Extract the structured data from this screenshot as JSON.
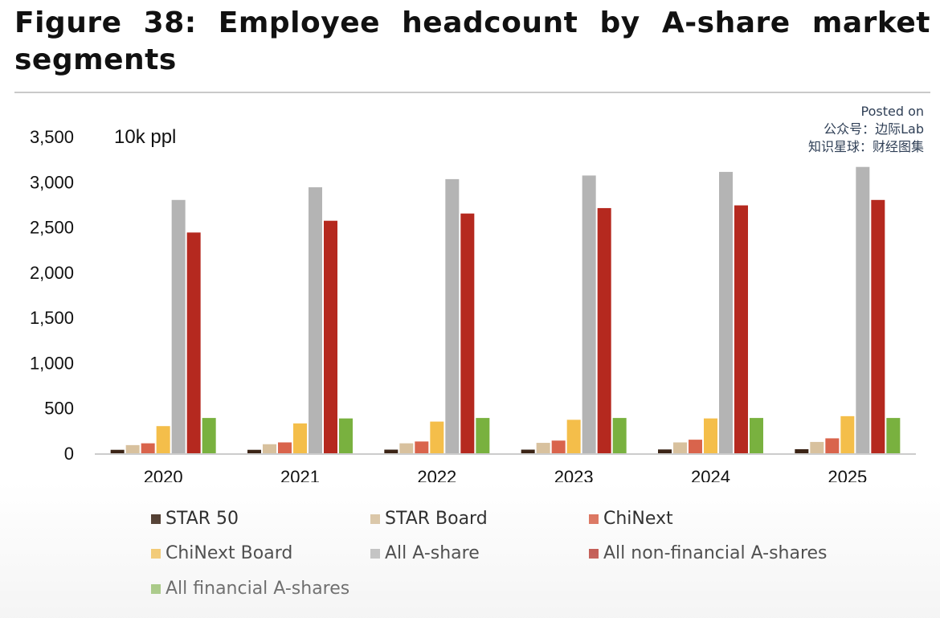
{
  "header": {
    "title": "Figure 38: Employee headcount by A-share market segments"
  },
  "watermark": {
    "line1": "Posted on",
    "line2": "公众号：边际Lab",
    "line3": "知识星球：财经图集"
  },
  "chart_data": {
    "type": "bar",
    "unit_label": "10k ppl",
    "categories": [
      "2020",
      "2021",
      "2022",
      "2023",
      "2024",
      "2025"
    ],
    "ylim": [
      0,
      3500
    ],
    "yticks": [
      0,
      500,
      1000,
      1500,
      2000,
      2500,
      3000,
      3500
    ],
    "ytick_labels": [
      "0",
      "500",
      "1,000",
      "1,500",
      "2,000",
      "2,500",
      "3,000",
      "3,500"
    ],
    "grid": false,
    "legend_position": "bottom",
    "series": [
      {
        "name": "STAR 50",
        "color": "#3b2416",
        "values": [
          38,
          38,
          40,
          40,
          42,
          45
        ]
      },
      {
        "name": "STAR Board",
        "color": "#d8c19e",
        "values": [
          90,
          100,
          110,
          115,
          120,
          125
        ]
      },
      {
        "name": "ChiNext",
        "color": "#d9644c",
        "values": [
          110,
          120,
          130,
          140,
          150,
          165
        ]
      },
      {
        "name": "ChiNext Board",
        "color": "#f4be4a",
        "values": [
          300,
          330,
          350,
          370,
          385,
          410
        ]
      },
      {
        "name": "All A-share",
        "color": "#b4b4b4",
        "values": [
          2800,
          2940,
          3030,
          3070,
          3110,
          3165
        ]
      },
      {
        "name": "All non-financial A-shares",
        "color": "#b5291f",
        "values": [
          2440,
          2570,
          2650,
          2710,
          2740,
          2800
        ]
      },
      {
        "name": "All financial A-shares",
        "color": "#79b13f",
        "values": [
          390,
          385,
          390,
          390,
          390,
          390
        ]
      }
    ]
  }
}
